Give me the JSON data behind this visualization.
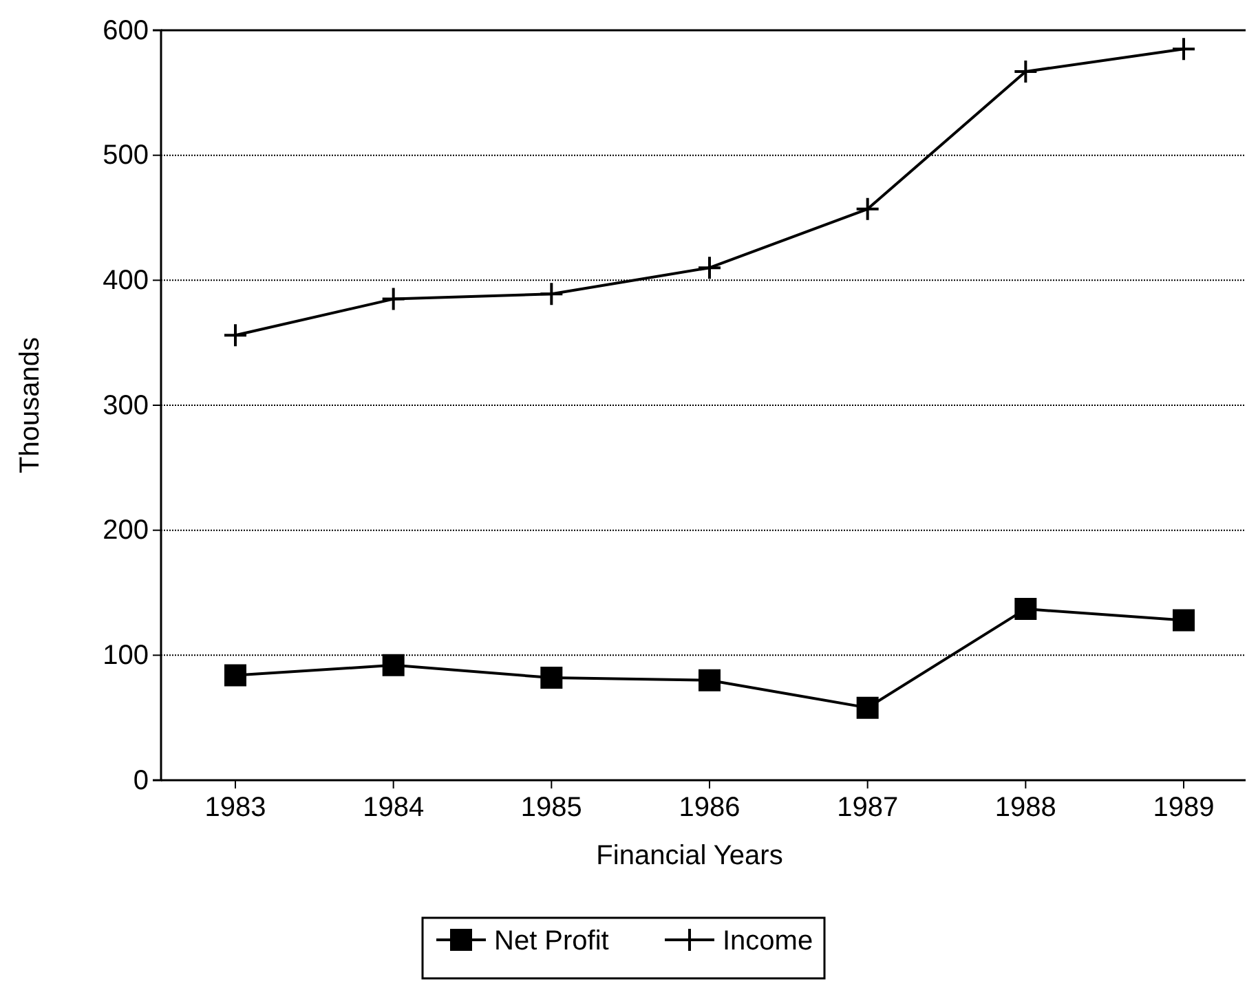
{
  "chart_data": {
    "type": "line",
    "xlabel": "Financial Years",
    "ylabel": "Thousands",
    "categories": [
      "1983",
      "1984",
      "1985",
      "1986",
      "1987",
      "1988",
      "1989"
    ],
    "series": [
      {
        "name": "Net Profit",
        "color": "#000000",
        "marker": "square",
        "values": [
          84,
          92,
          82,
          80,
          58,
          137,
          128
        ]
      },
      {
        "name": "Income",
        "color": "#000000",
        "marker": "cross",
        "values": [
          356,
          385,
          389,
          410,
          457,
          567,
          585
        ]
      }
    ],
    "ylim": [
      0,
      600
    ],
    "yticks": [
      0,
      100,
      200,
      300,
      400,
      500,
      600
    ],
    "grid": "y",
    "legend": "bottom",
    "line_style": "solid"
  }
}
